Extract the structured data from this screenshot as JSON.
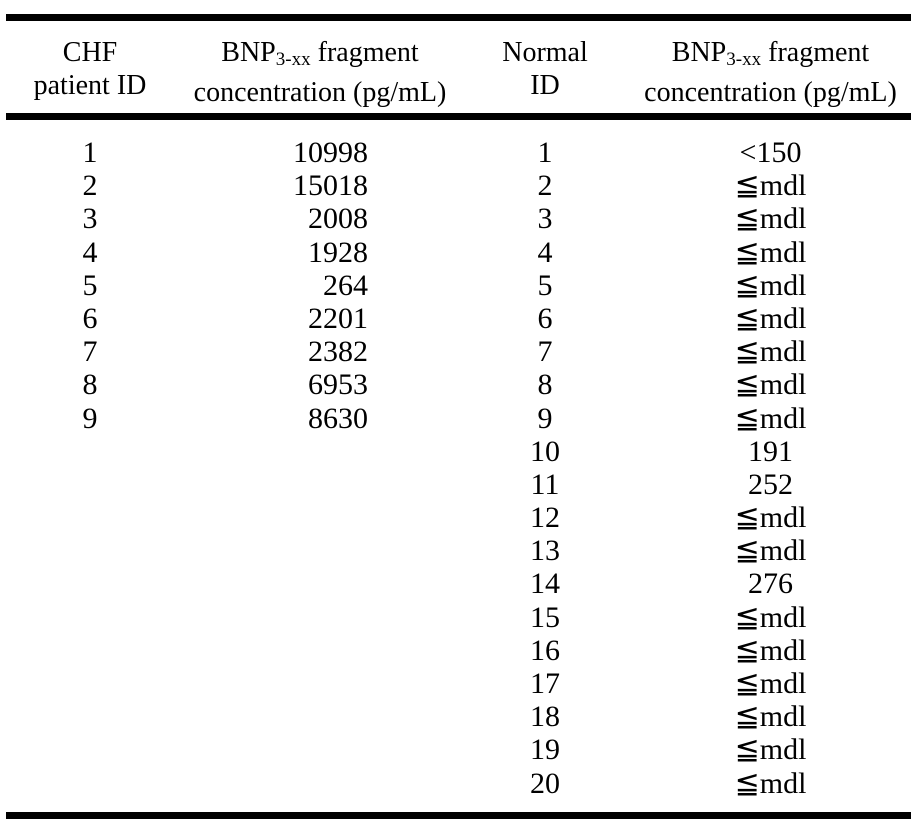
{
  "page": {
    "background_color": "#ffffff",
    "text_color": "#000000"
  },
  "table": {
    "header": {
      "chf_col_line1": "CHF",
      "chf_col_line2": "patient ID",
      "normal_col_line1": "Normal",
      "normal_col_line2": "ID",
      "bnp_fragment": {
        "prefix": "BNP",
        "subscript": "3-xx",
        "suffix": "fragment"
      },
      "concentration_unit": "concentration (pg/mL)"
    },
    "rows": [
      {
        "chf_id": "1",
        "chf_concentration": "10998",
        "normal_id": "1",
        "normal_concentration": "<150"
      },
      {
        "chf_id": "2",
        "chf_concentration": "15018",
        "normal_id": "2",
        "normal_concentration": "≦mdl"
      },
      {
        "chf_id": "3",
        "chf_concentration": "2008",
        "normal_id": "3",
        "normal_concentration": "≦mdl"
      },
      {
        "chf_id": "4",
        "chf_concentration": "1928",
        "normal_id": "4",
        "normal_concentration": "≦mdl"
      },
      {
        "chf_id": "5",
        "chf_concentration": "264",
        "normal_id": "5",
        "normal_concentration": "≦mdl"
      },
      {
        "chf_id": "6",
        "chf_concentration": "2201",
        "normal_id": "6",
        "normal_concentration": "≦mdl"
      },
      {
        "chf_id": "7",
        "chf_concentration": "2382",
        "normal_id": "7",
        "normal_concentration": "≦mdl"
      },
      {
        "chf_id": "8",
        "chf_concentration": "6953",
        "normal_id": "8",
        "normal_concentration": "≦mdl"
      },
      {
        "chf_id": "9",
        "chf_concentration": "8630",
        "normal_id": "9",
        "normal_concentration": "≦mdl"
      },
      {
        "chf_id": "",
        "chf_concentration": "",
        "normal_id": "10",
        "normal_concentration": "191"
      },
      {
        "chf_id": "",
        "chf_concentration": "",
        "normal_id": "11",
        "normal_concentration": "252"
      },
      {
        "chf_id": "",
        "chf_concentration": "",
        "normal_id": "12",
        "normal_concentration": "≦mdl"
      },
      {
        "chf_id": "",
        "chf_concentration": "",
        "normal_id": "13",
        "normal_concentration": "≦mdl"
      },
      {
        "chf_id": "",
        "chf_concentration": "",
        "normal_id": "14",
        "normal_concentration": "276"
      },
      {
        "chf_id": "",
        "chf_concentration": "",
        "normal_id": "15",
        "normal_concentration": "≦mdl"
      },
      {
        "chf_id": "",
        "chf_concentration": "",
        "normal_id": "16",
        "normal_concentration": "≦mdl"
      },
      {
        "chf_id": "",
        "chf_concentration": "",
        "normal_id": "17",
        "normal_concentration": "≦mdl"
      },
      {
        "chf_id": "",
        "chf_concentration": "",
        "normal_id": "18",
        "normal_concentration": "≦mdl"
      },
      {
        "chf_id": "",
        "chf_concentration": "",
        "normal_id": "19",
        "normal_concentration": "≦mdl"
      },
      {
        "chf_id": "",
        "chf_concentration": "",
        "normal_id": "20",
        "normal_concentration": "≦mdl"
      }
    ]
  }
}
